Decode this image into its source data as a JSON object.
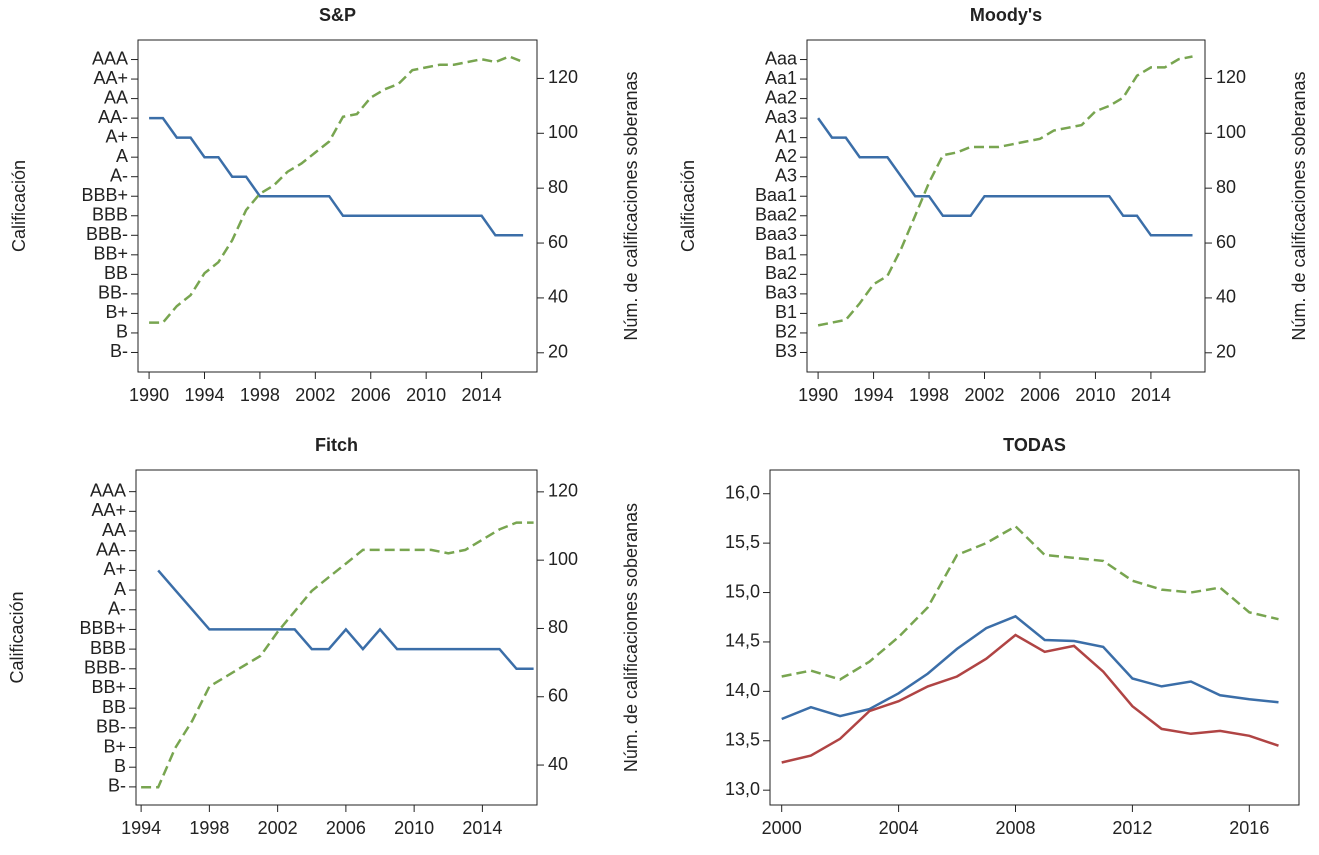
{
  "chart_data": [
    {
      "type": "line",
      "title": "S&P",
      "y_label": "Calificación",
      "y2_label": "Núm. de calificaciones soberanas",
      "x": [
        1990,
        1991,
        1992,
        1993,
        1994,
        1995,
        1996,
        1997,
        1998,
        1999,
        2000,
        2001,
        2002,
        2003,
        2004,
        2005,
        2006,
        2007,
        2008,
        2009,
        2010,
        2011,
        2012,
        2013,
        2014,
        2015,
        2016,
        2017
      ],
      "xlim": [
        1989.2,
        2018
      ],
      "xticks": [
        1990,
        1994,
        1998,
        2002,
        2006,
        2010,
        2014
      ],
      "ylim": [
        0,
        17
      ],
      "yticks": [
        {
          "value": 1,
          "label": "B-"
        },
        {
          "value": 2,
          "label": "B"
        },
        {
          "value": 3,
          "label": "B+"
        },
        {
          "value": 4,
          "label": "BB-"
        },
        {
          "value": 5,
          "label": "BB"
        },
        {
          "value": 6,
          "label": "BB+"
        },
        {
          "value": 7,
          "label": "BBB-"
        },
        {
          "value": 8,
          "label": "BBB"
        },
        {
          "value": 9,
          "label": "BBB+"
        },
        {
          "value": 10,
          "label": "A-"
        },
        {
          "value": 11,
          "label": "A"
        },
        {
          "value": 12,
          "label": "A+"
        },
        {
          "value": 13,
          "label": "AA-"
        },
        {
          "value": 14,
          "label": "AA"
        },
        {
          "value": 15,
          "label": "AA+"
        },
        {
          "value": 16,
          "label": "AAA"
        }
      ],
      "y2lim": [
        13,
        134
      ],
      "y2ticks": [
        20,
        40,
        60,
        80,
        100,
        120
      ],
      "series": [
        {
          "color": "#3b6ea8",
          "style": "solid",
          "values": [
            13,
            13,
            12,
            12,
            11,
            11,
            10,
            10,
            9,
            9,
            9,
            9,
            9,
            9,
            8,
            8,
            8,
            8,
            8,
            8,
            8,
            8,
            8,
            8,
            8,
            7,
            7,
            7
          ]
        },
        {
          "color": "#78a550",
          "style": "dashed",
          "axis": "y2",
          "values": [
            31,
            31,
            37,
            41,
            49,
            53,
            61,
            72,
            78,
            81,
            86,
            89,
            93,
            97,
            106,
            107,
            113,
            116,
            118,
            123,
            124,
            125,
            125,
            126,
            127,
            126,
            128,
            126
          ]
        }
      ]
    },
    {
      "type": "line",
      "title": "Moody's",
      "y_label": "Calificación",
      "y2_label": "Núm. de calificaciones soberanas",
      "x": [
        1990,
        1991,
        1992,
        1993,
        1994,
        1995,
        1996,
        1997,
        1998,
        1999,
        2000,
        2001,
        2002,
        2003,
        2004,
        2005,
        2006,
        2007,
        2008,
        2009,
        2010,
        2011,
        2012,
        2013,
        2014,
        2015,
        2016,
        2017
      ],
      "xlim": [
        1989.2,
        2017.9
      ],
      "xticks": [
        1990,
        1994,
        1998,
        2002,
        2006,
        2010,
        2014
      ],
      "ylim": [
        0,
        17
      ],
      "yticks": [
        {
          "value": 1,
          "label": "B3"
        },
        {
          "value": 2,
          "label": "B2"
        },
        {
          "value": 3,
          "label": "B1"
        },
        {
          "value": 4,
          "label": "Ba3"
        },
        {
          "value": 5,
          "label": "Ba2"
        },
        {
          "value": 6,
          "label": "Ba1"
        },
        {
          "value": 7,
          "label": "Baa3"
        },
        {
          "value": 8,
          "label": "Baa2"
        },
        {
          "value": 9,
          "label": "Baa1"
        },
        {
          "value": 10,
          "label": "A3"
        },
        {
          "value": 11,
          "label": "A2"
        },
        {
          "value": 12,
          "label": "A1"
        },
        {
          "value": 13,
          "label": "Aa3"
        },
        {
          "value": 14,
          "label": "Aa2"
        },
        {
          "value": 15,
          "label": "Aa1"
        },
        {
          "value": 16,
          "label": "Aaa"
        }
      ],
      "y2lim": [
        13,
        134
      ],
      "y2ticks": [
        20,
        40,
        60,
        80,
        100,
        120
      ],
      "series": [
        {
          "color": "#3b6ea8",
          "style": "solid",
          "values": [
            13,
            12,
            12,
            11,
            11,
            11,
            10,
            9,
            9,
            8,
            8,
            8,
            9,
            9,
            9,
            9,
            9,
            9,
            9,
            9,
            9,
            9,
            8,
            8,
            7,
            7,
            7,
            7
          ]
        },
        {
          "color": "#78a550",
          "style": "dashed",
          "axis": "y2",
          "values": [
            30,
            31,
            32,
            38,
            45,
            48,
            58,
            70,
            82,
            92,
            93,
            95,
            95,
            95,
            96,
            97,
            98,
            101,
            102,
            103,
            108,
            110,
            113,
            121,
            124,
            124,
            127,
            128
          ]
        }
      ]
    },
    {
      "type": "line",
      "title": "Fitch",
      "y_label": "Calificación",
      "y2_label": "Núm. de calificaciones soberanas",
      "x": [
        1994,
        1995,
        1996,
        1997,
        1998,
        1999,
        2000,
        2001,
        2002,
        2003,
        2004,
        2005,
        2006,
        2007,
        2008,
        2009,
        2010,
        2011,
        2012,
        2013,
        2014,
        2015,
        2016,
        2017
      ],
      "xlim": [
        1993.7,
        2017.2
      ],
      "xticks": [
        1994,
        1998,
        2002,
        2006,
        2010,
        2014
      ],
      "ylim": [
        0.08,
        17.1
      ],
      "yticks": [
        {
          "value": 1,
          "label": "B-"
        },
        {
          "value": 2,
          "label": "B"
        },
        {
          "value": 3,
          "label": "B+"
        },
        {
          "value": 4,
          "label": "BB-"
        },
        {
          "value": 5,
          "label": "BB"
        },
        {
          "value": 6,
          "label": "BB+"
        },
        {
          "value": 7,
          "label": "BBB-"
        },
        {
          "value": 8,
          "label": "BBB"
        },
        {
          "value": 9,
          "label": "BBB+"
        },
        {
          "value": 10,
          "label": "A-"
        },
        {
          "value": 11,
          "label": "A"
        },
        {
          "value": 12,
          "label": "A+"
        },
        {
          "value": 13,
          "label": "AA-"
        },
        {
          "value": 14,
          "label": "AA"
        },
        {
          "value": 15,
          "label": "AA+"
        },
        {
          "value": 16,
          "label": "AAA"
        }
      ],
      "y2lim": [
        28.3,
        126.4
      ],
      "y2ticks": [
        40,
        60,
        80,
        100,
        120
      ],
      "series": [
        {
          "color": "#3b6ea8",
          "style": "solid",
          "values": [
            null,
            12,
            11,
            10,
            9,
            9,
            9,
            9,
            9,
            9,
            8,
            8,
            9,
            8,
            9,
            8,
            8,
            8,
            8,
            8,
            8,
            8,
            7,
            7
          ]
        },
        {
          "color": "#78a550",
          "style": "dashed",
          "axis": "y2",
          "values": [
            33.5,
            33.5,
            45,
            53,
            63,
            66,
            69,
            72,
            79,
            85,
            91,
            95,
            99,
            103,
            103,
            103,
            103,
            103,
            102,
            103,
            106,
            109,
            111,
            111
          ]
        }
      ]
    },
    {
      "type": "line",
      "title": "TODAS",
      "x": [
        2000,
        2001,
        2002,
        2003,
        2004,
        2005,
        2006,
        2007,
        2008,
        2009,
        2010,
        2011,
        2012,
        2013,
        2014,
        2015,
        2016,
        2017
      ],
      "xlim": [
        1999.6,
        2017.7
      ],
      "xticks": [
        2000,
        2004,
        2008,
        2012,
        2016
      ],
      "ylim": [
        12.85,
        16.24
      ],
      "yticks": [
        {
          "value": 13.0,
          "label": "13,0"
        },
        {
          "value": 13.5,
          "label": "13,5"
        },
        {
          "value": 14.0,
          "label": "14,0"
        },
        {
          "value": 14.5,
          "label": "14,5"
        },
        {
          "value": 15.0,
          "label": "15,0"
        },
        {
          "value": 15.5,
          "label": "15,5"
        },
        {
          "value": 16.0,
          "label": "16,0"
        }
      ],
      "series": [
        {
          "color": "#78a550",
          "style": "dashed",
          "values": [
            14.15,
            14.21,
            14.12,
            14.3,
            14.55,
            14.85,
            15.38,
            15.5,
            15.67,
            15.38,
            15.35,
            15.32,
            15.12,
            15.03,
            15.0,
            15.05,
            14.8,
            14.73
          ]
        },
        {
          "color": "#3b6ea8",
          "style": "solid",
          "values": [
            13.72,
            13.84,
            13.75,
            13.82,
            13.98,
            14.18,
            14.43,
            14.64,
            14.76,
            14.52,
            14.51,
            14.45,
            14.13,
            14.05,
            14.1,
            13.96,
            13.92,
            13.89
          ]
        },
        {
          "color": "#b04444",
          "style": "solid",
          "values": [
            13.28,
            13.35,
            13.52,
            13.8,
            13.9,
            14.05,
            14.15,
            14.33,
            14.57,
            14.4,
            14.46,
            14.2,
            13.85,
            13.62,
            13.57,
            13.6,
            13.55,
            13.45
          ]
        }
      ]
    }
  ]
}
